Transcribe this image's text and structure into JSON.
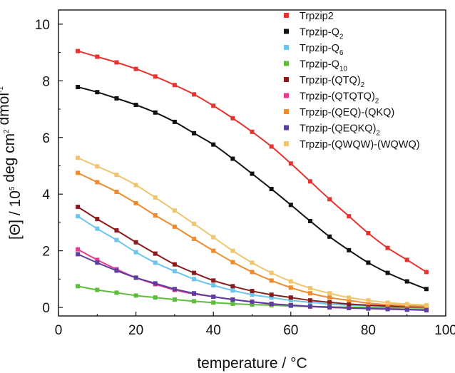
{
  "chart_data": {
    "type": "line",
    "xlabel": "temperature / °C",
    "ylabel": "[Θ] / 10^5 deg cm^2 dmol^-1",
    "xlim": [
      0,
      100
    ],
    "ylim": [
      -0.3,
      10.5
    ],
    "x_ticks": [
      0,
      20,
      40,
      60,
      80,
      100
    ],
    "y_ticks": [
      0,
      2,
      4,
      6,
      8,
      10
    ],
    "grid": false,
    "legend_placement": "top-right",
    "series": [
      {
        "name": "Trpzip2",
        "color": "#e8322f",
        "x": [
          5,
          10,
          15,
          20,
          25,
          30,
          35,
          40,
          45,
          50,
          55,
          60,
          65,
          70,
          75,
          80,
          85,
          90,
          95
        ],
        "y": [
          9.05,
          8.85,
          8.65,
          8.42,
          8.15,
          7.85,
          7.52,
          7.12,
          6.68,
          6.2,
          5.68,
          5.08,
          4.45,
          3.82,
          3.22,
          2.62,
          2.1,
          1.68,
          1.25
        ]
      },
      {
        "name": "Trpzip-Q",
        "name_sub": "2",
        "color": "#111111",
        "x": [
          5,
          10,
          15,
          20,
          25,
          30,
          35,
          40,
          45,
          50,
          55,
          60,
          65,
          70,
          75,
          80,
          85,
          90,
          95
        ],
        "y": [
          7.78,
          7.6,
          7.38,
          7.15,
          6.88,
          6.55,
          6.15,
          5.75,
          5.25,
          4.72,
          4.18,
          3.62,
          3.05,
          2.5,
          2.02,
          1.58,
          1.22,
          0.92,
          0.65
        ]
      },
      {
        "name": "Trpzip-Q",
        "name_sub": "6",
        "color": "#6cc5ee",
        "x": [
          5,
          10,
          15,
          20,
          25,
          30,
          35,
          40,
          45,
          50,
          55,
          60,
          65,
          70,
          75,
          80,
          85,
          90,
          95
        ],
        "y": [
          3.22,
          2.78,
          2.38,
          1.95,
          1.58,
          1.28,
          1.0,
          0.78,
          0.6,
          0.45,
          0.35,
          0.25,
          0.18,
          0.12,
          0.08,
          0.06,
          0.04,
          0.03,
          0.02
        ]
      },
      {
        "name": "Trpzip-Q",
        "name_sub": "10",
        "color": "#5bbd3a",
        "x": [
          5,
          10,
          15,
          20,
          25,
          30,
          35,
          40,
          45,
          50,
          55,
          60,
          65,
          70,
          75,
          80,
          85,
          90,
          95
        ],
        "y": [
          0.75,
          0.62,
          0.52,
          0.42,
          0.35,
          0.28,
          0.22,
          0.17,
          0.13,
          0.1,
          0.08,
          0.05,
          0.03,
          0.02,
          0.01,
          0.0,
          -0.01,
          -0.01,
          -0.02
        ]
      },
      {
        "name": "Trpzip-(QTQ)",
        "name_sub": "2",
        "color": "#8b1a1a",
        "x": [
          5,
          10,
          15,
          20,
          25,
          30,
          35,
          40,
          45,
          50,
          55,
          60,
          65,
          70,
          75,
          80,
          85,
          90,
          95
        ],
        "y": [
          3.55,
          3.12,
          2.72,
          2.3,
          1.9,
          1.52,
          1.22,
          0.95,
          0.75,
          0.58,
          0.45,
          0.35,
          0.25,
          0.18,
          0.12,
          0.08,
          0.05,
          0.03,
          0.02
        ]
      },
      {
        "name": "Trpzip-(QTQTQ)",
        "name_sub": "2",
        "color": "#e8398f",
        "x": [
          5,
          10,
          15,
          20,
          25,
          30,
          35,
          40,
          45,
          50,
          55,
          60,
          65,
          70,
          75,
          80,
          85,
          90,
          95
        ],
        "y": [
          2.05,
          1.68,
          1.35,
          1.05,
          0.82,
          0.62,
          0.48,
          0.38,
          0.28,
          0.2,
          0.12,
          0.08,
          0.03,
          0.0,
          -0.02,
          -0.03,
          -0.05,
          -0.07,
          -0.08
        ]
      },
      {
        "name": "Trpzip-(QEQ)-(QKQ)",
        "color": "#f08a2c",
        "x": [
          5,
          10,
          15,
          20,
          25,
          30,
          35,
          40,
          45,
          50,
          55,
          60,
          65,
          70,
          75,
          80,
          85,
          90,
          95
        ],
        "y": [
          4.75,
          4.42,
          4.08,
          3.68,
          3.25,
          2.85,
          2.42,
          2.0,
          1.6,
          1.25,
          0.95,
          0.7,
          0.5,
          0.35,
          0.25,
          0.15,
          0.1,
          0.06,
          0.03
        ]
      },
      {
        "name": "Trpzip-(QEQKQ)",
        "name_sub": "2",
        "color": "#5b3fa0",
        "x": [
          5,
          10,
          15,
          20,
          25,
          30,
          35,
          40,
          45,
          50,
          55,
          60,
          65,
          70,
          75,
          80,
          85,
          90,
          95
        ],
        "y": [
          1.88,
          1.58,
          1.3,
          1.05,
          0.85,
          0.65,
          0.5,
          0.38,
          0.28,
          0.2,
          0.13,
          0.08,
          0.04,
          0.01,
          -0.02,
          -0.04,
          -0.06,
          -0.08,
          -0.1
        ]
      },
      {
        "name": "Trpzip-(QWQW)-(WQWQ)",
        "color": "#efc56e",
        "x": [
          5,
          10,
          15,
          20,
          25,
          30,
          35,
          40,
          45,
          50,
          55,
          60,
          65,
          70,
          75,
          80,
          85,
          90,
          95
        ],
        "y": [
          5.28,
          4.98,
          4.68,
          4.32,
          3.88,
          3.42,
          2.95,
          2.48,
          2.0,
          1.58,
          1.22,
          0.92,
          0.68,
          0.5,
          0.35,
          0.25,
          0.17,
          0.12,
          0.08
        ]
      }
    ]
  }
}
